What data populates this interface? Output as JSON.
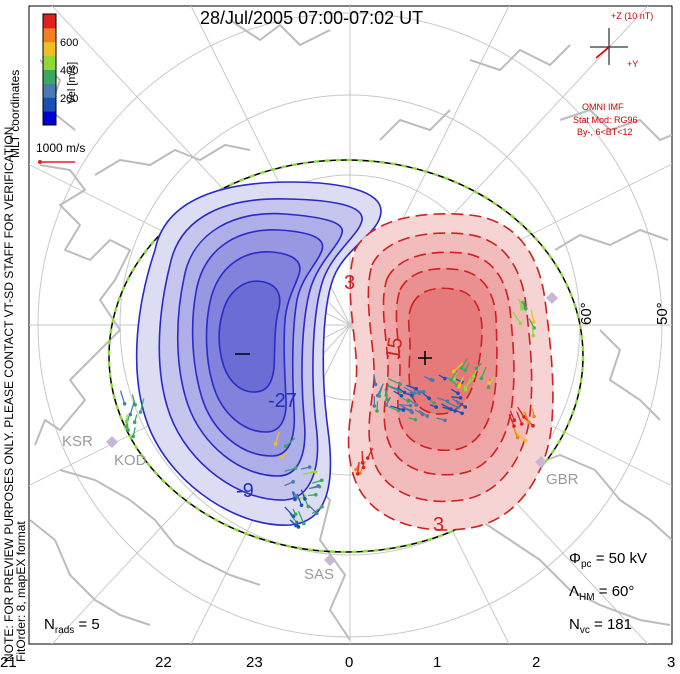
{
  "title": "28/Jul/2005 07:00-07:02 UT",
  "coordinate_label": "MLT coordinates",
  "velocity_scale": {
    "label": "Vel [m/s]",
    "ticks": [
      "200",
      "400",
      "600"
    ],
    "colors": [
      "#0000d0",
      "#1a4fb8",
      "#4a7ab0",
      "#3aa860",
      "#8ed83a",
      "#f0c020",
      "#f08020",
      "#e02020"
    ]
  },
  "reference_vector_label": "1000 m/s",
  "notes": {
    "preview": "NOTE: FOR PREVIEW PURPOSES ONLY. PLEASE CONTACT VT-SD STAFF FOR VERIFICATION.",
    "fit": "FitOrder: 8, mapEX format"
  },
  "imf": {
    "z_label": "+Z (10 nT)",
    "y_label": "+Y",
    "source": "OMNI IMF",
    "model": "Stat Mod: RG96",
    "condition": "By-, 6<BT<12"
  },
  "latitude_labels": [
    "60°",
    "50°"
  ],
  "stations": [
    "KSR",
    "KOD",
    "SAS",
    "GBR"
  ],
  "contour_labels": {
    "neg_a": "-27",
    "neg_b": "-9",
    "pos_a": "3",
    "pos_b": "15",
    "pos_c": "3"
  },
  "stats": {
    "phi_symbol": "Φ",
    "phi_sub": "pc",
    "phi_value": "= 50 kV",
    "lambda_symbol": "Λ",
    "lambda_sub": "HM",
    "lambda_value": "= 60°",
    "nvc_symbol": "N",
    "nvc_sub": "vc",
    "nvc_value": "= 181",
    "nrads_symbol": "N",
    "nrads_sub": "rads",
    "nrads_value": "= 5"
  },
  "mlt_axis": [
    "21",
    "22",
    "23",
    "0",
    "1",
    "2",
    "3"
  ],
  "potential_colors": {
    "negative": "#2030c0",
    "positive": "#d02020",
    "boundary": "#8ed83a"
  }
}
